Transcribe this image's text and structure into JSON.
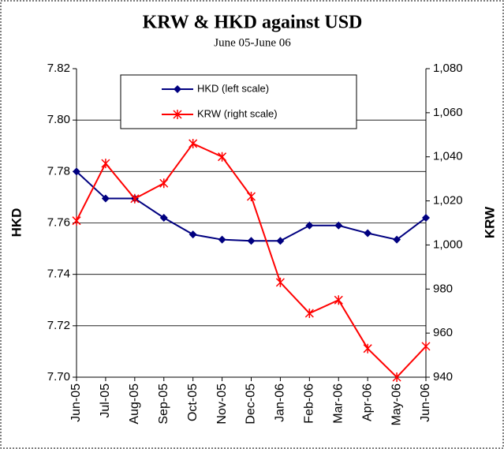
{
  "chart_data": {
    "type": "line",
    "title": "KRW & HKD against USD",
    "subtitle": "June 05-June 06",
    "y_label": "HKD",
    "y2_label": "KRW",
    "categories": [
      "Jun-05",
      "Jul-05",
      "Aug-05",
      "Sep-05",
      "Oct-05",
      "Nov-05",
      "Dec-05",
      "Jan-06",
      "Feb-06",
      "Mar-06",
      "Apr-06",
      "May-06",
      "Jun-06"
    ],
    "series": [
      {
        "name": "HKD (left scale)",
        "color": "#000080",
        "marker": "diamond",
        "values": [
          7.78,
          7.7695,
          7.7695,
          7.762,
          7.7555,
          7.7535,
          7.753,
          7.753,
          7.759,
          7.759,
          7.756,
          7.7535,
          7.762
        ]
      },
      {
        "name": "KRW (right scale)",
        "color": "#ff0000",
        "marker": "star",
        "axis": "y2",
        "values": [
          1011,
          1037,
          1021,
          1028,
          1046,
          1040,
          1022,
          983,
          969,
          975,
          953,
          940,
          954
        ]
      }
    ],
    "ylim": [
      7.7,
      7.82
    ],
    "yticks": [
      {
        "value": 7.7,
        "label": "7.70"
      },
      {
        "value": 7.72,
        "label": "7.72"
      },
      {
        "value": 7.74,
        "label": "7.74"
      },
      {
        "value": 7.76,
        "label": "7.76"
      },
      {
        "value": 7.78,
        "label": "7.78"
      },
      {
        "value": 7.8,
        "label": "7.80"
      },
      {
        "value": 7.82,
        "label": "7.82"
      }
    ],
    "y2lim": [
      940,
      1080
    ],
    "y2ticks": [
      940,
      960,
      980,
      {
        "value": 1000,
        "label": "1,000"
      },
      {
        "value": 1020,
        "label": "1,020"
      },
      {
        "value": 1040,
        "label": "1,040"
      },
      {
        "value": 1060,
        "label": "1,060"
      },
      {
        "value": 1080,
        "label": "1,080"
      }
    ],
    "grid": true
  }
}
